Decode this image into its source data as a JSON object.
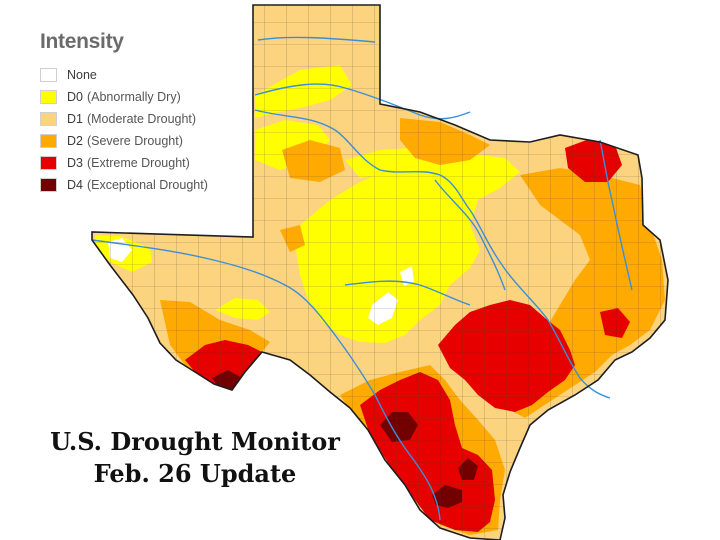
{
  "legend": {
    "title": "Intensity",
    "items": [
      {
        "code": "None",
        "desc": "",
        "color": "#ffffff"
      },
      {
        "code": "D0",
        "desc": "(Abnormally Dry)",
        "color": "#ffff00"
      },
      {
        "code": "D1",
        "desc": "(Moderate Drought)",
        "color": "#fcd37f"
      },
      {
        "code": "D2",
        "desc": "(Severe Drought)",
        "color": "#ffaa00"
      },
      {
        "code": "D3",
        "desc": "(Extreme Drought)",
        "color": "#e60000"
      },
      {
        "code": "D4",
        "desc": "(Exceptional Drought)",
        "color": "#730000"
      }
    ]
  },
  "caption": {
    "line1": "U.S. Drought Monitor",
    "line2": "Feb. 26 Update"
  },
  "map": {
    "region": "Texas",
    "colors": {
      "none": "#ffffff",
      "d0": "#ffff00",
      "d1": "#fcd37f",
      "d2": "#ffaa00",
      "d3": "#e60000",
      "d4": "#730000",
      "county_lines": "#3a3a3a",
      "rivers": "#3b8fd8",
      "gulf": "#ffffff"
    }
  }
}
